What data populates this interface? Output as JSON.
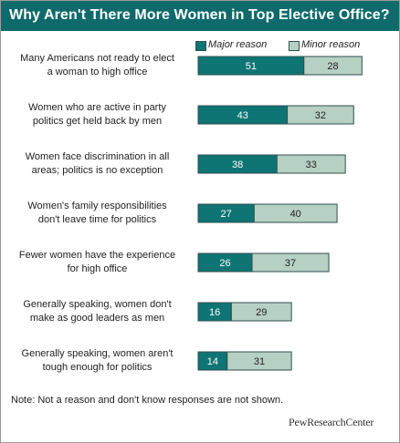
{
  "colors": {
    "header": "#0f6b6b",
    "major": "#0f7474",
    "minor": "#b7d0c4",
    "bar_outline": "#2f4f4f"
  },
  "chart_data": {
    "type": "bar",
    "orientation": "horizontal",
    "stacked": true,
    "title": "Why Aren't There More Women in Top Elective Office?",
    "categories": [
      "Many Americans not ready to elect a woman to high office",
      "Women who are active in party politics get held back by men",
      "Women face discrimination in all areas; politics is no exception",
      "Women's family responsibilities don't leave time for politics",
      "Fewer women have the experience for high office",
      "Generally speaking, women don't make as good leaders as men",
      "Generally speaking, women aren't tough enough for politics"
    ],
    "label_lines": [
      [
        "Many Americans not ready to elect",
        "a woman to high office"
      ],
      [
        "Women who are active in party",
        "politics get held back by men"
      ],
      [
        "Women face discrimination in all",
        "areas; politics is no exception"
      ],
      [
        "Women's family responsibilities",
        "don't leave time for politics"
      ],
      [
        "Fewer women have the experience",
        "for high office"
      ],
      [
        "Generally speaking, women don't",
        "make as good leaders as men"
      ],
      [
        "Generally speaking, women aren't",
        "tough enough for politics"
      ]
    ],
    "series": [
      {
        "name": "Major reason",
        "values": [
          51,
          43,
          38,
          27,
          26,
          16,
          14
        ]
      },
      {
        "name": "Minor reason",
        "values": [
          28,
          32,
          33,
          40,
          37,
          29,
          31
        ]
      }
    ],
    "legend_position": "top-right",
    "grid": false
  },
  "note": "Note: Not a reason and don't know responses are not shown.",
  "brand": "PewResearchCenter"
}
